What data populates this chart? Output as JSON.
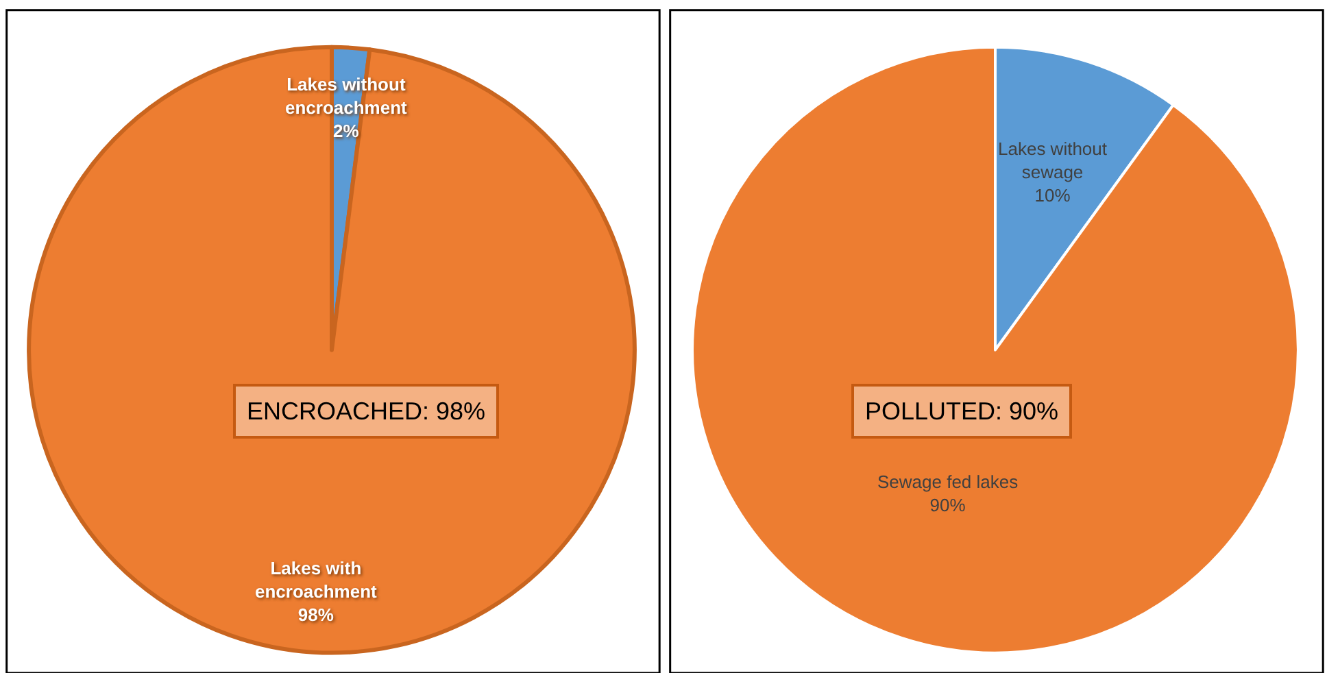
{
  "chart_data": [
    {
      "type": "pie",
      "categories": [
        "Lakes without encroachment",
        "Lakes with encroachment"
      ],
      "values": [
        2,
        98
      ],
      "value_labels": [
        "2%",
        "98%"
      ],
      "colors": [
        "#5b9bd5",
        "#ed7d31"
      ],
      "annotations": [
        "ENCROACHED: 98%"
      ]
    },
    {
      "type": "pie",
      "categories": [
        "Lakes without sewage",
        "Sewage fed lakes"
      ],
      "values": [
        10,
        90
      ],
      "value_labels": [
        "10%",
        "90%"
      ],
      "colors": [
        "#5b9bd5",
        "#ed7d31"
      ],
      "annotations": [
        "POLLUTED: 90%"
      ]
    }
  ]
}
